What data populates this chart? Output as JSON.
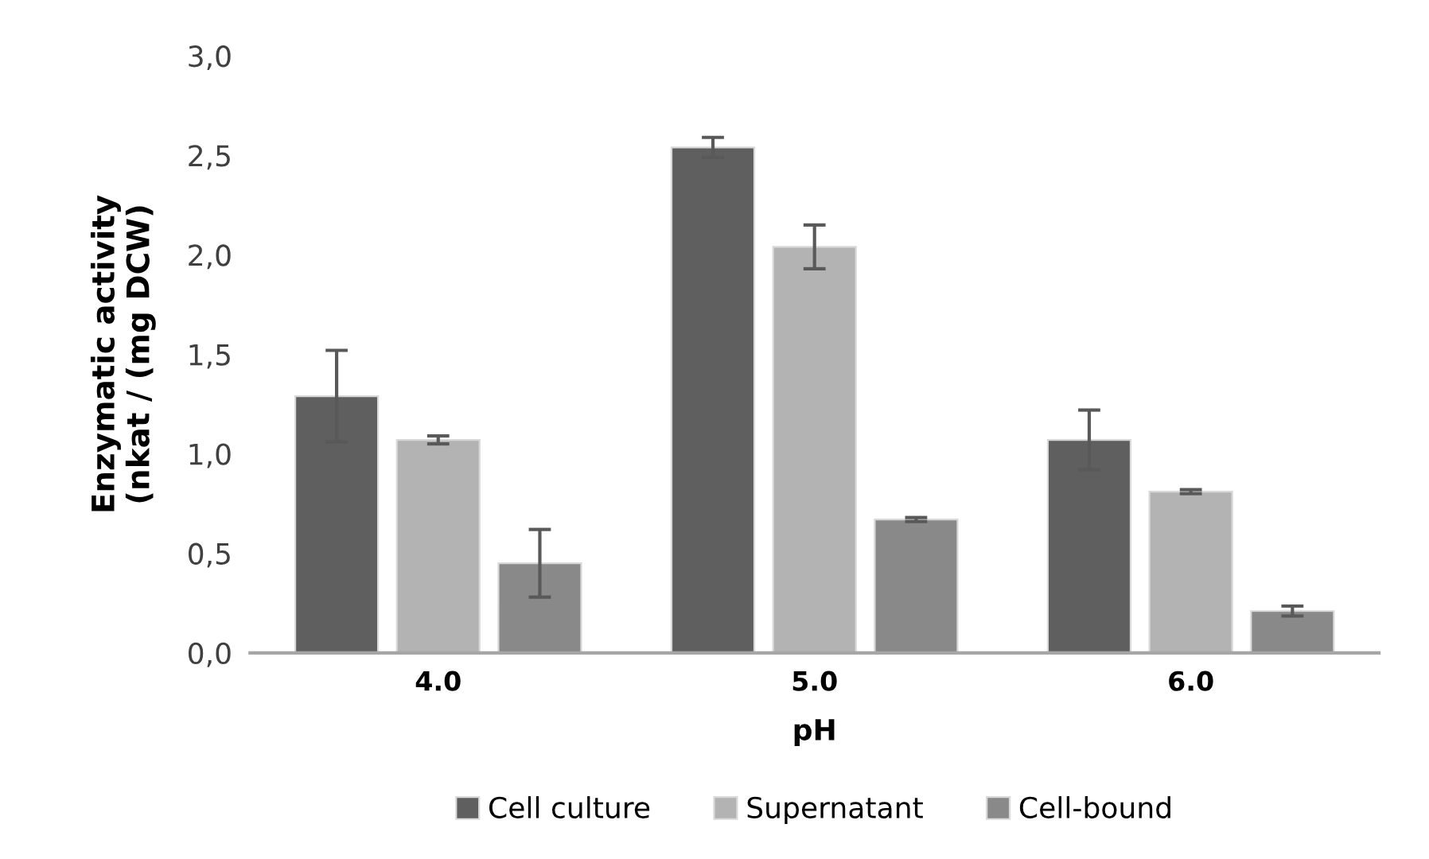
{
  "chart_data": {
    "type": "bar",
    "xlabel": "pH",
    "ylabel": "Enzymatic activity\n(nkat / (mg DCW)",
    "categories": [
      "4.0",
      "5.0",
      "6.0"
    ],
    "series": [
      {
        "name": "Cell culture",
        "color": "#5f5f5f",
        "values": [
          1.29,
          2.54,
          1.07
        ],
        "errors": [
          0.23,
          0.05,
          0.15
        ]
      },
      {
        "name": "Supernatant",
        "color": "#b3b3b3",
        "values": [
          1.07,
          2.04,
          0.81
        ],
        "errors": [
          0.02,
          0.11,
          0.01
        ]
      },
      {
        "name": "Cell-bound",
        "color": "#898989",
        "values": [
          0.45,
          0.67,
          0.21
        ],
        "errors": [
          0.17,
          0.01,
          0.025
        ]
      }
    ],
    "ylim": [
      0,
      3
    ],
    "yticks": [
      {
        "value": 0,
        "label": "0,0"
      },
      {
        "value": 0.5,
        "label": "0,5"
      },
      {
        "value": 1,
        "label": "1,0"
      },
      {
        "value": 1.5,
        "label": "1,5"
      },
      {
        "value": 2,
        "label": "2,0"
      },
      {
        "value": 2.5,
        "label": "2,5"
      },
      {
        "value": 3,
        "label": "3,0"
      }
    ],
    "grid": false,
    "legend": "bottom"
  }
}
